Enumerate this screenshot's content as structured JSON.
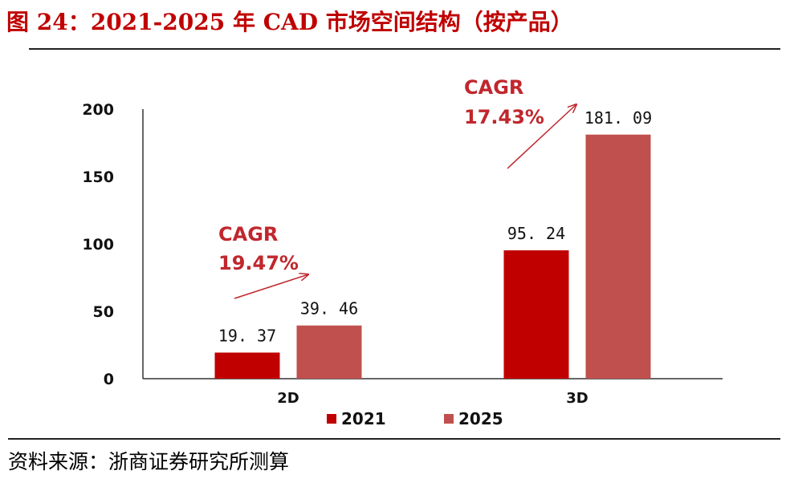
{
  "title": "图 24：2021-2025 年 CAD 市场空间结构（按产品）",
  "source": "资料来源：浙商证券研究所测算",
  "colors": {
    "title": "#c00000",
    "series_2021": "#c00000",
    "series_2025": "#c0504d",
    "annotation": "#c0272d",
    "axis": "#333333"
  },
  "chart_data": {
    "type": "bar",
    "title": "",
    "xlabel": "",
    "ylabel": "",
    "ylim": [
      0,
      200
    ],
    "yticks": [
      0,
      50,
      100,
      150,
      200
    ],
    "categories": [
      "2D",
      "3D"
    ],
    "series": [
      {
        "name": "2021",
        "values": [
          19.37,
          95.24
        ],
        "labels": [
          "19. 37",
          "95. 24"
        ]
      },
      {
        "name": "2025",
        "values": [
          39.46,
          181.09
        ],
        "labels": [
          "39. 46",
          "181. 09"
        ]
      }
    ],
    "annotations": [
      {
        "category": "2D",
        "line1": "CAGR",
        "line2": "19.47%"
      },
      {
        "category": "3D",
        "line1": "CAGR",
        "line2": "17.43%"
      }
    ],
    "legend": {
      "position": "bottom",
      "entries": [
        "2021",
        "2025"
      ]
    }
  }
}
